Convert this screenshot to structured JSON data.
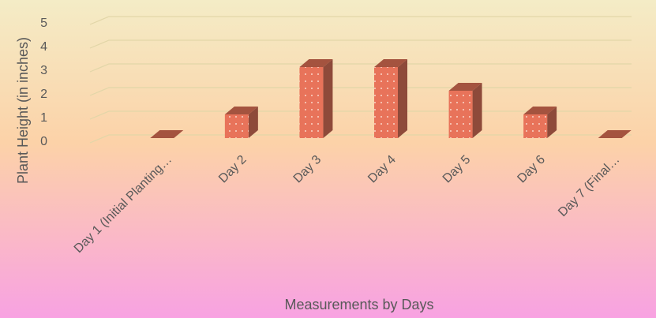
{
  "chart_data": {
    "type": "bar",
    "x_label": "Measurements by Days",
    "y_label": "Plant Height (in inches)",
    "categories": [
      "Day 1 (Initial Planting…",
      "Day 2",
      "Day 3",
      "Day 4",
      "Day 5",
      "Day 6",
      "Day 7 (Final…"
    ],
    "values": [
      0,
      1,
      3,
      3,
      2,
      1,
      0
    ],
    "color": "#e8735a",
    "ylim": [
      0,
      5
    ],
    "yticks": [
      0,
      1,
      2,
      3,
      4,
      5
    ],
    "grid": true
  }
}
